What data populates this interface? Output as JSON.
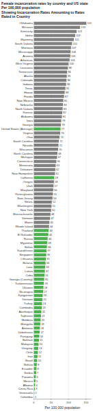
{
  "chart_data": {
    "type": "bar",
    "orientation": "horizontal",
    "title": "Female incarceration rates by country and US state Per 100,000 population\nShowing Incarceration Rates Amounting to Rates Rated in Country",
    "x_label": "Per 100,000 population",
    "categories": [
      "Oklahoma",
      "Missouri",
      "Kentucky",
      "Idaho",
      "Wyoming",
      "South Dakota",
      "Montana",
      "Mississippi",
      "Arizona",
      "Arkansas",
      "West Virginia",
      "Louisiana",
      "Tennessee",
      "Alaska",
      "Colorado",
      "Indiana",
      "Texas",
      "Hawaii",
      "Florida",
      "New Mexico",
      "Nebraska",
      "North Dakota",
      "Kansas",
      "Alabama",
      "Iowa",
      "Georgia",
      "United States (Average)",
      "Virginia",
      "Ohio",
      "South Carolina",
      "Nevada",
      "Wisconsin",
      "North Carolina",
      "Michigan",
      "Connecticut",
      "Minnesota",
      "Delaware",
      "New Hampshire",
      "California",
      "Oregon",
      "Utah",
      "Maryland",
      "Pennsylvania",
      "New Jersey",
      "Illinois",
      "Washington",
      "New York",
      "Massachusetts",
      "Vermont",
      "Maine",
      "Rhode Island",
      "Thailand",
      "El Salvador",
      "Russia",
      "Myanmar",
      "Belize",
      "Kazakhstan",
      "Singapore",
      "Lithuania",
      "Belarus",
      "Laos",
      "Latvia",
      "Cuba",
      "Georgia (Country)",
      "Turkmenistan",
      "Ukraine",
      "Nicaragua",
      "Kyrgyzstan",
      "Vietnam",
      "Turkey",
      "Cambodia",
      "Azerbaijan",
      "Tajikistan",
      "Moldova",
      "Mongolia",
      "Armenia",
      "Uzbekistan",
      "Paraguay",
      "Bahrain",
      "Malaysia",
      "Uruguay",
      "Chile",
      "Iran",
      "Brazil",
      "Bolivia",
      "Ecuador",
      "Serbia",
      "Panama",
      "Mexico",
      "Albania",
      "Costa Rica",
      "Venezuela",
      "Colombia"
    ],
    "values": [
      151,
      133,
      123,
      119,
      115,
      110,
      107,
      106,
      105,
      103,
      100,
      98,
      96,
      95,
      94,
      93,
      91,
      89,
      87,
      85,
      84,
      83,
      82,
      81,
      79,
      78,
      77,
      76,
      74,
      72,
      71,
      70,
      68,
      67,
      65,
      63,
      62,
      61,
      59,
      58,
      57,
      56,
      55,
      54,
      52,
      51,
      50,
      48,
      47,
      45,
      44,
      43,
      42,
      40,
      39,
      38,
      37,
      36,
      35,
      34,
      33,
      32,
      31,
      30,
      29,
      28,
      27,
      26,
      25,
      24,
      23,
      22,
      21,
      20,
      19,
      18,
      17,
      16,
      15,
      14,
      13,
      12,
      11,
      10,
      9,
      8,
      7,
      6,
      5,
      4,
      3,
      2,
      1
    ],
    "colors": [
      "#808080",
      "#808080",
      "#808080",
      "#808080",
      "#808080",
      "#808080",
      "#808080",
      "#808080",
      "#808080",
      "#808080",
      "#808080",
      "#808080",
      "#808080",
      "#808080",
      "#808080",
      "#808080",
      "#808080",
      "#808080",
      "#808080",
      "#808080",
      "#808080",
      "#808080",
      "#808080",
      "#808080",
      "#808080",
      "#808080",
      "#4caf50",
      "#808080",
      "#808080",
      "#808080",
      "#808080",
      "#808080",
      "#808080",
      "#808080",
      "#808080",
      "#808080",
      "#808080",
      "#808080",
      "#4caf50",
      "#808080",
      "#808080",
      "#808080",
      "#808080",
      "#808080",
      "#808080",
      "#808080",
      "#808080",
      "#808080",
      "#808080",
      "#808080",
      "#808080",
      "#4caf50",
      "#4caf50",
      "#4caf50",
      "#4caf50",
      "#4caf50",
      "#4caf50",
      "#4caf50",
      "#4caf50",
      "#4caf50",
      "#4caf50",
      "#4caf50",
      "#4caf50",
      "#4caf50",
      "#4caf50",
      "#4caf50",
      "#4caf50",
      "#4caf50",
      "#4caf50",
      "#4caf50",
      "#4caf50",
      "#4caf50",
      "#4caf50",
      "#4caf50",
      "#4caf50",
      "#4caf50",
      "#4caf50",
      "#4caf50",
      "#4caf50",
      "#4caf50",
      "#4caf50",
      "#4caf50",
      "#4caf50",
      "#4caf50",
      "#4caf50",
      "#4caf50",
      "#4caf50",
      "#4caf50",
      "#4caf50",
      "#4caf50",
      "#4caf50",
      "#4caf50",
      "#4caf50"
    ],
    "xlim": [
      0,
      165
    ],
    "xticks": [
      0,
      50,
      100,
      150
    ],
    "grid": true,
    "data_labels": true
  }
}
